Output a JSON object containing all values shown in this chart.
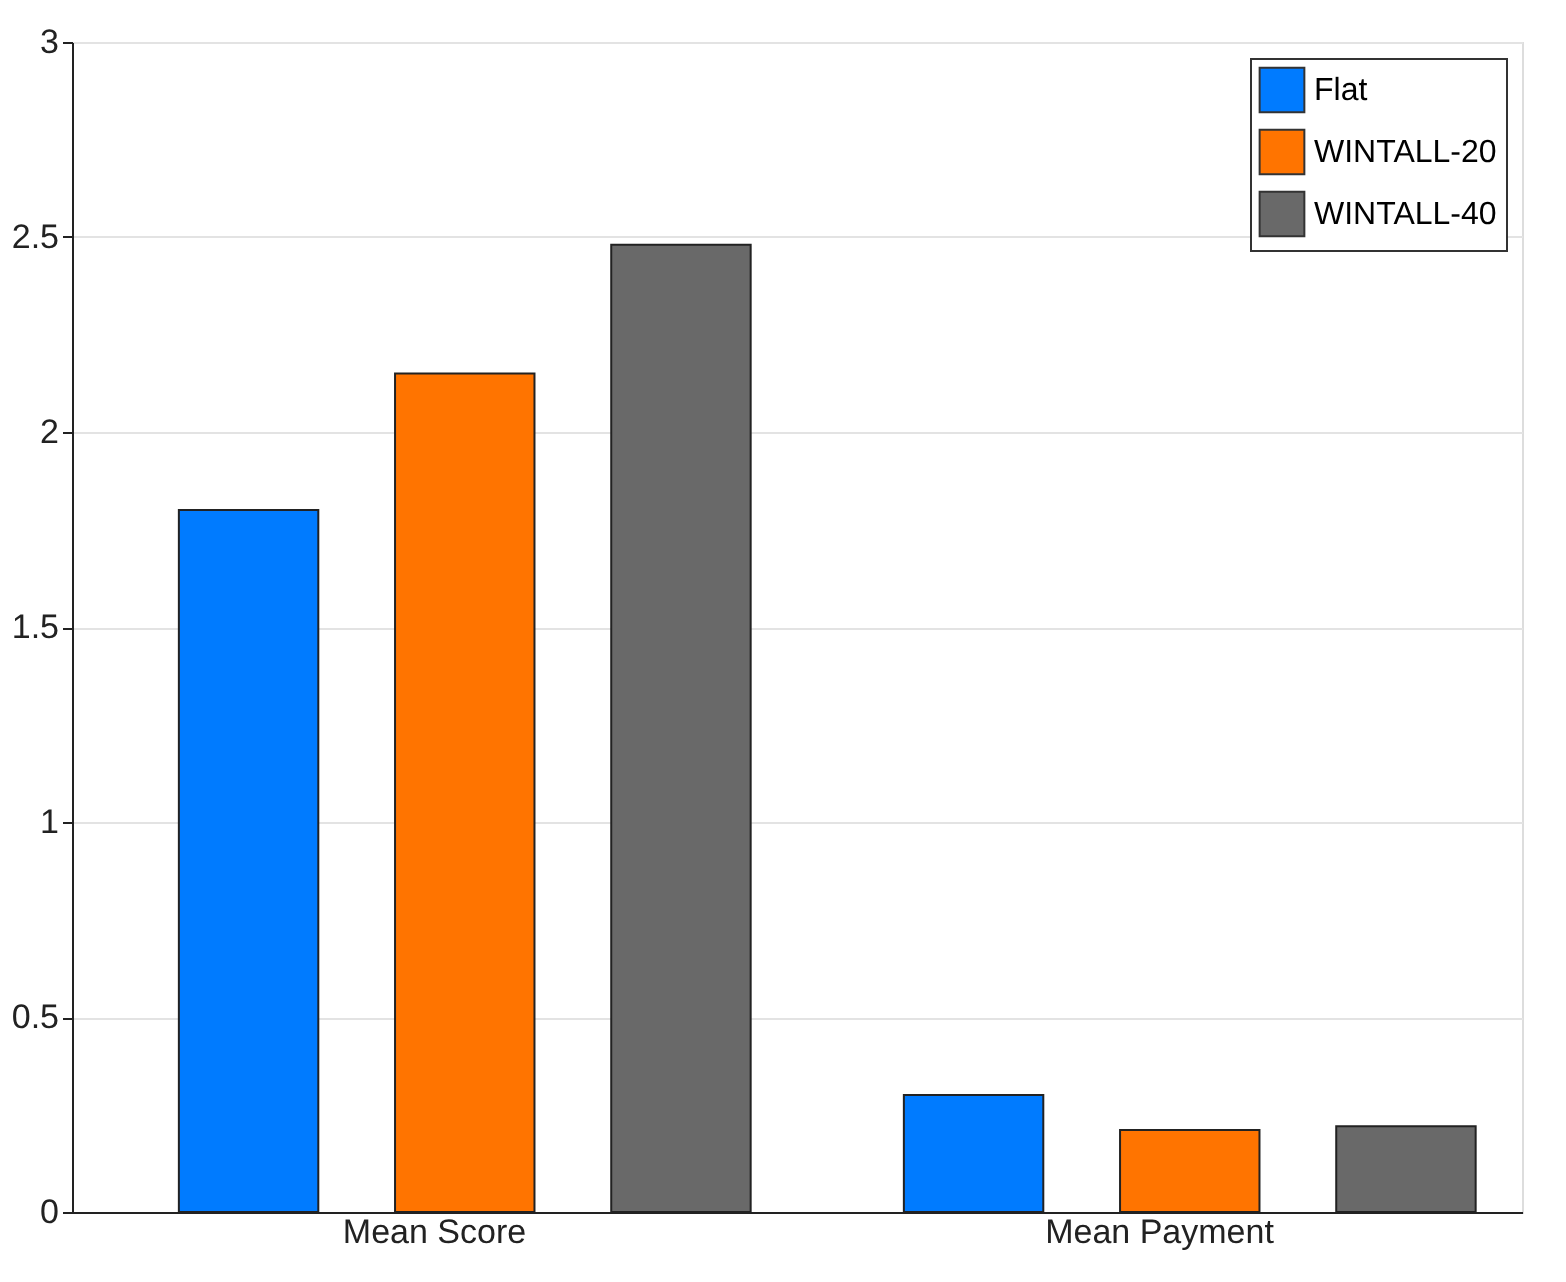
{
  "chart_data": {
    "type": "bar",
    "categories": [
      "Mean Score",
      "Mean Payment"
    ],
    "series": [
      {
        "name": "Flat",
        "color": "#007bff",
        "values": [
          1.8,
          0.3
        ]
      },
      {
        "name": "WINTALL-20",
        "color": "#ff7400",
        "values": [
          2.15,
          0.21
        ]
      },
      {
        "name": "WINTALL-40",
        "color": "#696969",
        "values": [
          2.48,
          0.22
        ]
      }
    ],
    "ylim": [
      0,
      3
    ],
    "yticks": [
      0,
      0.5,
      1,
      1.5,
      2,
      2.5,
      3
    ],
    "grid": "y",
    "legend": "top right"
  }
}
